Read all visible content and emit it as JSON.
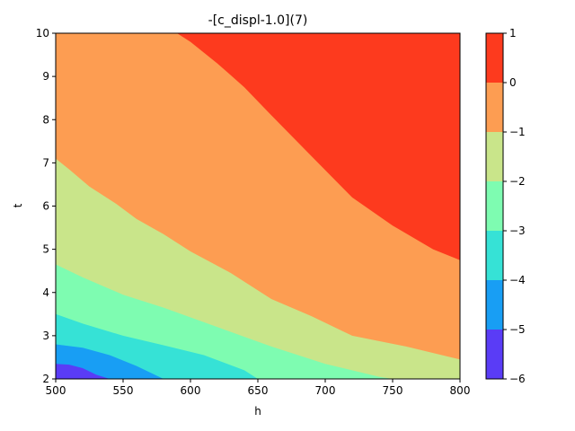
{
  "chart_data": {
    "type": "filled-contour",
    "title": "-[c_displ-1.0](7)",
    "xlabel": "h",
    "ylabel": "t",
    "xlim": [
      500,
      800
    ],
    "ylim": [
      2,
      10
    ],
    "x_ticks": [
      500,
      550,
      600,
      650,
      700,
      750,
      800
    ],
    "y_ticks": [
      2,
      3,
      4,
      5,
      6,
      7,
      8,
      9,
      10
    ],
    "grid": false,
    "colorbar": {
      "levels": [
        -6,
        -5,
        -4,
        -3,
        -2,
        -1,
        0,
        1
      ],
      "tick_labels": [
        "−6",
        "−5",
        "−4",
        "−3",
        "−2",
        "−1",
        "0",
        "1"
      ],
      "colors": [
        "#5a3cf6",
        "#189ef4",
        "#36e2d6",
        "#7efcb1",
        "#c9e58a",
        "#fd9d52",
        "#fd3a1e"
      ]
    },
    "contour_boundaries": [
      {
        "level": -5,
        "points": [
          [
            500,
            2.35
          ],
          [
            510,
            2.33
          ],
          [
            520,
            2.25
          ],
          [
            530,
            2.1
          ],
          [
            540,
            2.0
          ]
        ]
      },
      {
        "level": -4,
        "points": [
          [
            500,
            2.8
          ],
          [
            520,
            2.72
          ],
          [
            540,
            2.55
          ],
          [
            560,
            2.3
          ],
          [
            580,
            2.0
          ]
        ]
      },
      {
        "level": -3,
        "points": [
          [
            500,
            3.5
          ],
          [
            520,
            3.28
          ],
          [
            550,
            3.0
          ],
          [
            580,
            2.78
          ],
          [
            610,
            2.55
          ],
          [
            640,
            2.2
          ],
          [
            650,
            2.0
          ]
        ]
      },
      {
        "level": -2,
        "points": [
          [
            500,
            4.65
          ],
          [
            520,
            4.35
          ],
          [
            550,
            3.95
          ],
          [
            580,
            3.65
          ],
          [
            620,
            3.2
          ],
          [
            660,
            2.75
          ],
          [
            700,
            2.35
          ],
          [
            740,
            2.05
          ],
          [
            750,
            2.0
          ]
        ]
      },
      {
        "level": -1,
        "points": [
          [
            500,
            7.1
          ],
          [
            510,
            6.85
          ],
          [
            525,
            6.45
          ],
          [
            545,
            6.05
          ],
          [
            560,
            5.7
          ],
          [
            580,
            5.35
          ],
          [
            600,
            4.95
          ],
          [
            630,
            4.45
          ],
          [
            660,
            3.85
          ],
          [
            690,
            3.45
          ],
          [
            720,
            3.0
          ],
          [
            760,
            2.75
          ],
          [
            800,
            2.45
          ]
        ]
      },
      {
        "level": 0,
        "points": [
          [
            590,
            10.0
          ],
          [
            600,
            9.8
          ],
          [
            620,
            9.3
          ],
          [
            640,
            8.75
          ],
          [
            660,
            8.1
          ],
          [
            690,
            7.15
          ],
          [
            720,
            6.2
          ],
          [
            750,
            5.55
          ],
          [
            780,
            5.0
          ],
          [
            800,
            4.75
          ]
        ]
      }
    ]
  }
}
